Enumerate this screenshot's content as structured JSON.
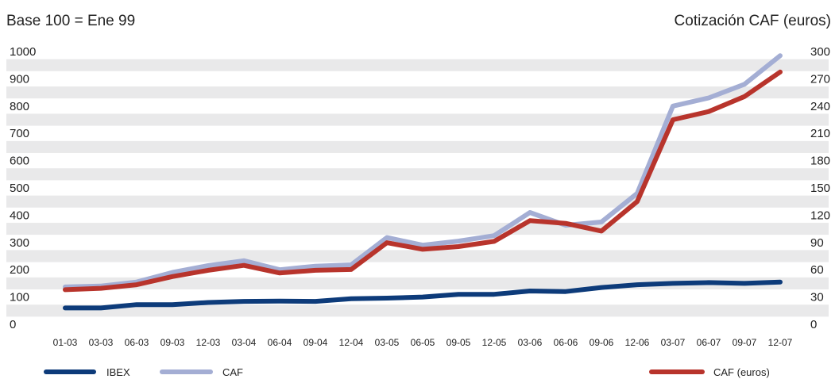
{
  "chart_data": {
    "type": "line",
    "title_left": "Base 100 = Ene 99",
    "title_right": "Cotización CAF (euros)",
    "categories": [
      "01-03",
      "03-03",
      "06-03",
      "09-03",
      "12-03",
      "03-04",
      "06-04",
      "09-04",
      "12-04",
      "03-05",
      "06-05",
      "09-05",
      "12-05",
      "03-06",
      "06-06",
      "09-06",
      "12-06",
      "03-07",
      "06-07",
      "09-07",
      "12-07"
    ],
    "y_left": {
      "ylim": [
        0,
        1000
      ],
      "ticks": [
        "0",
        "100",
        "200",
        "300",
        "400",
        "500",
        "600",
        "700",
        "800",
        "900",
        "1000"
      ]
    },
    "y_right": {
      "ylim": [
        0,
        300
      ],
      "ticks": [
        "0",
        "30",
        "60",
        "90",
        "120",
        "150",
        "180",
        "210",
        "240",
        "270",
        "300"
      ]
    },
    "series": [
      {
        "name": "IBEX",
        "axis": "left",
        "color": "#0d3b7a",
        "values": [
          60,
          60,
          72,
          72,
          80,
          84,
          85,
          84,
          94,
          96,
          100,
          110,
          110,
          122,
          120,
          135,
          145,
          150,
          153,
          150,
          155
        ]
      },
      {
        "name": "CAF",
        "axis": "left",
        "color": "#a4aed4",
        "values": [
          137,
          140,
          155,
          190,
          215,
          233,
          200,
          213,
          218,
          318,
          290,
          305,
          325,
          410,
          363,
          375,
          480,
          800,
          830,
          880,
          985
        ]
      },
      {
        "name": "CAF (euros)",
        "axis": "right",
        "color": "#b8342c",
        "values": [
          38,
          39.6,
          43.5,
          52.5,
          59.4,
          64.8,
          56.4,
          59.4,
          60.3,
          89.7,
          82.5,
          85.5,
          91.2,
          114,
          111,
          102.6,
          135,
          225,
          234,
          250.5,
          277.5
        ]
      }
    ],
    "grid": "horizontal-bands",
    "legend": "bottom"
  }
}
